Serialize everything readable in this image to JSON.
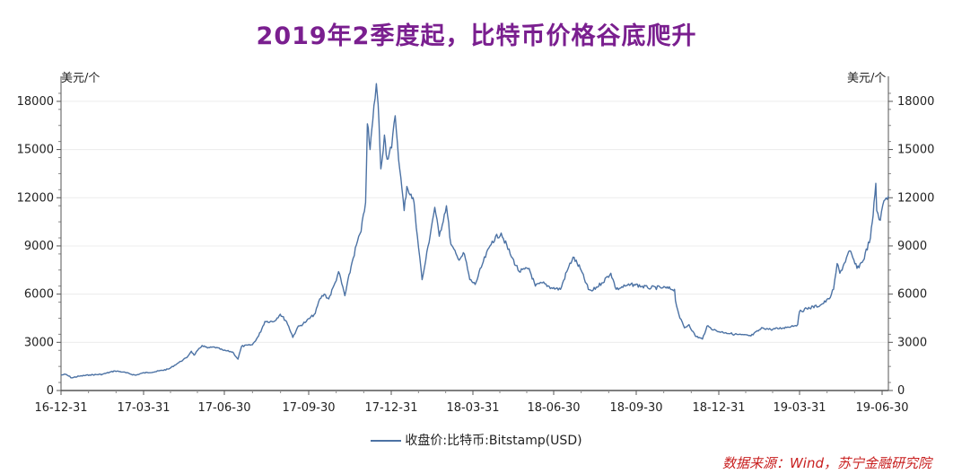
{
  "title": "2019年2季度起，比特币价格谷底爬升",
  "units": {
    "left": "美元/个",
    "right": "美元/个"
  },
  "source_note": "数据来源：Wind，苏宁金融研究院",
  "colors": {
    "title": "#7a1f8f",
    "line": "#4c72a4",
    "source": "#c81e1e"
  },
  "chart_data": {
    "type": "line",
    "title": "2019年2季度起，比特币价格谷底爬升",
    "ylabel": "美元/个",
    "ylim": [
      0,
      19000
    ],
    "yticks": [
      0,
      3000,
      6000,
      9000,
      12000,
      15000,
      18000
    ],
    "xticks": [
      "16-12-31",
      "17-03-31",
      "17-06-30",
      "17-09-30",
      "17-12-31",
      "18-03-31",
      "18-06-30",
      "18-09-30",
      "18-12-31",
      "19-03-31",
      "19-06-30"
    ],
    "xlim": [
      "2016-12-31",
      "2019-07-10"
    ],
    "grid": true,
    "legend_position": "bottom",
    "series": [
      {
        "name": "收盘价:比特币:Bitstamp(USD)",
        "points": [
          [
            "2016-12-31",
            960
          ],
          [
            "2017-01-05",
            1010
          ],
          [
            "2017-01-12",
            790
          ],
          [
            "2017-01-20",
            890
          ],
          [
            "2017-02-01",
            970
          ],
          [
            "2017-02-15",
            1010
          ],
          [
            "2017-03-01",
            1220
          ],
          [
            "2017-03-10",
            1150
          ],
          [
            "2017-03-24",
            950
          ],
          [
            "2017-03-31",
            1080
          ],
          [
            "2017-04-15",
            1170
          ],
          [
            "2017-04-30",
            1340
          ],
          [
            "2017-05-10",
            1700
          ],
          [
            "2017-05-20",
            2050
          ],
          [
            "2017-05-25",
            2450
          ],
          [
            "2017-05-28",
            2200
          ],
          [
            "2017-06-06",
            2800
          ],
          [
            "2017-06-12",
            2650
          ],
          [
            "2017-06-20",
            2700
          ],
          [
            "2017-06-30",
            2500
          ],
          [
            "2017-07-10",
            2400
          ],
          [
            "2017-07-16",
            1950
          ],
          [
            "2017-07-20",
            2750
          ],
          [
            "2017-08-01",
            2850
          ],
          [
            "2017-08-08",
            3400
          ],
          [
            "2017-08-15",
            4300
          ],
          [
            "2017-08-25",
            4300
          ],
          [
            "2017-09-01",
            4750
          ],
          [
            "2017-09-08",
            4300
          ],
          [
            "2017-09-14",
            3500
          ],
          [
            "2017-09-15",
            3300
          ],
          [
            "2017-09-20",
            3900
          ],
          [
            "2017-09-30",
            4300
          ],
          [
            "2017-10-10",
            4800
          ],
          [
            "2017-10-15",
            5700
          ],
          [
            "2017-10-20",
            6000
          ],
          [
            "2017-10-25",
            5700
          ],
          [
            "2017-11-01",
            6700
          ],
          [
            "2017-11-05",
            7400
          ],
          [
            "2017-11-12",
            5900
          ],
          [
            "2017-11-20",
            8000
          ],
          [
            "2017-11-26",
            9300
          ],
          [
            "2017-11-30",
            9900
          ],
          [
            "2017-12-05",
            11700
          ],
          [
            "2017-12-07",
            16600
          ],
          [
            "2017-12-10",
            15000
          ],
          [
            "2017-12-13",
            16800
          ],
          [
            "2017-12-17",
            19100
          ],
          [
            "2017-12-19",
            17800
          ],
          [
            "2017-12-22",
            13800
          ],
          [
            "2017-12-26",
            15900
          ],
          [
            "2017-12-29",
            14400
          ],
          [
            "2018-01-03",
            15100
          ],
          [
            "2018-01-07",
            17100
          ],
          [
            "2018-01-12",
            13800
          ],
          [
            "2018-01-17",
            11200
          ],
          [
            "2018-01-20",
            12700
          ],
          [
            "2018-01-28",
            11700
          ],
          [
            "2018-02-02",
            8900
          ],
          [
            "2018-02-06",
            6900
          ],
          [
            "2018-02-10",
            8100
          ],
          [
            "2018-02-20",
            11400
          ],
          [
            "2018-02-25",
            9600
          ],
          [
            "2018-03-05",
            11500
          ],
          [
            "2018-03-10",
            9100
          ],
          [
            "2018-03-18",
            8200
          ],
          [
            "2018-03-25",
            8500
          ],
          [
            "2018-03-31",
            6900
          ],
          [
            "2018-04-06",
            6600
          ],
          [
            "2018-04-15",
            8000
          ],
          [
            "2018-04-25",
            9300
          ],
          [
            "2018-05-05",
            9800
          ],
          [
            "2018-05-15",
            8500
          ],
          [
            "2018-05-25",
            7400
          ],
          [
            "2018-06-05",
            7600
          ],
          [
            "2018-06-12",
            6500
          ],
          [
            "2018-06-20",
            6700
          ],
          [
            "2018-06-30",
            6400
          ],
          [
            "2018-07-10",
            6300
          ],
          [
            "2018-07-17",
            7400
          ],
          [
            "2018-07-24",
            8300
          ],
          [
            "2018-08-01",
            7600
          ],
          [
            "2018-08-10",
            6300
          ],
          [
            "2018-08-14",
            6200
          ],
          [
            "2018-08-25",
            6700
          ],
          [
            "2018-09-04",
            7300
          ],
          [
            "2018-09-10",
            6300
          ],
          [
            "2018-09-20",
            6500
          ],
          [
            "2018-09-30",
            6600
          ],
          [
            "2018-10-15",
            6400
          ],
          [
            "2018-11-01",
            6400
          ],
          [
            "2018-11-14",
            6300
          ],
          [
            "2018-11-15",
            5600
          ],
          [
            "2018-11-20",
            4500
          ],
          [
            "2018-11-25",
            3900
          ],
          [
            "2018-11-30",
            4100
          ],
          [
            "2018-12-07",
            3400
          ],
          [
            "2018-12-15",
            3200
          ],
          [
            "2018-12-20",
            4000
          ],
          [
            "2018-12-31",
            3700
          ],
          [
            "2019-01-10",
            3600
          ],
          [
            "2019-01-20",
            3500
          ],
          [
            "2019-02-07",
            3400
          ],
          [
            "2019-02-20",
            3900
          ],
          [
            "2019-03-01",
            3800
          ],
          [
            "2019-03-15",
            3900
          ],
          [
            "2019-03-31",
            4100
          ],
          [
            "2019-04-02",
            4900
          ],
          [
            "2019-04-10",
            5100
          ],
          [
            "2019-04-25",
            5300
          ],
          [
            "2019-05-05",
            5700
          ],
          [
            "2019-05-10",
            6300
          ],
          [
            "2019-05-14",
            7900
          ],
          [
            "2019-05-17",
            7300
          ],
          [
            "2019-05-28",
            8700
          ],
          [
            "2019-06-05",
            7600
          ],
          [
            "2019-06-12",
            8100
          ],
          [
            "2019-06-20",
            9500
          ],
          [
            "2019-06-23",
            10900
          ],
          [
            "2019-06-26",
            12900
          ],
          [
            "2019-06-27",
            11200
          ],
          [
            "2019-07-01",
            10600
          ],
          [
            "2019-07-05",
            11800
          ],
          [
            "2019-07-10",
            12100
          ]
        ]
      }
    ]
  }
}
